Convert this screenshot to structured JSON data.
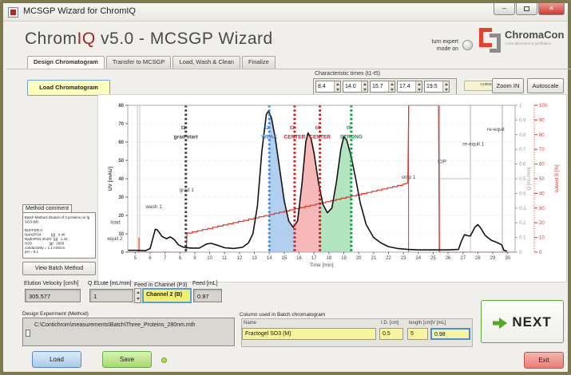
{
  "window": {
    "title": "MCSGP Wizard for ChromIQ"
  },
  "header": {
    "app_name_1": "Chrom",
    "app_name_2": "IQ",
    "app_name_3": " v5.0 - MCSGP Wizard",
    "expert_line1": "turn expert",
    "expert_line2": "mode on",
    "logo_name": "ChromaCon",
    "logo_tagline": "A new dimension in purification"
  },
  "tabs": [
    {
      "label": "Design Chromatogram",
      "active": true
    },
    {
      "label": "Transfer to MCSGP",
      "active": false
    },
    {
      "label": "Load, Wash & Clean",
      "active": false
    },
    {
      "label": "Finalize",
      "active": false
    }
  ],
  "toolbar": {
    "load_chromatogram": "Load Chromatogram",
    "characteristic_times_label": "Characteristic times (t1-t5)",
    "characteristic_times": [
      "8.4",
      "14.0",
      "15.7",
      "17.4",
      "19.5"
    ],
    "cursors_reset": "CURSORS RESET",
    "zoom_in": "Zoom IN",
    "autoscale": "Autoscale"
  },
  "method_comment": {
    "label": "Method comment",
    "lines": [
      "Batch Method: Elution of 3 proteins on fg",
      "SO3 (M)",
      "",
      "BUFFER A:",
      "NaH2PO4          [g]   0.40",
      "Na2HPO4 2H2O  [g]   1.44",
      "H2O                 [g]   2000",
      "conductivity = 1.1 mS/cm",
      "pH = 6.1"
    ],
    "view_batch_method": "View Batch Method"
  },
  "fields": {
    "elution_velocity": {
      "label": "Elution Velocity [cm/h]",
      "value": "305.577"
    },
    "q_elute": {
      "label": "Q ELute [mL/min]",
      "value": "1"
    },
    "feed_channel": {
      "label": "Feed in Channel (P3)",
      "value": "Channel 2 (B)"
    },
    "feed": {
      "label": "Feed [mL]",
      "value": "0.97"
    }
  },
  "design_experiment": {
    "label": "Design Experiment (Method)",
    "path": "C:\\Contichrom\\measurements\\Batch\\Three_Proteins_280nm.mth"
  },
  "column_table": {
    "label": "Column used in Batch chromatogram",
    "headers": [
      "Name",
      "I.D. [cm]",
      "length [cm]",
      "V [mL]"
    ],
    "row": [
      "Fractogel SO3 (M)",
      "0.5",
      "5",
      "0.98"
    ]
  },
  "actions": {
    "next": "NEXT",
    "load": "Load",
    "save": "Save",
    "exit": "Exit"
  },
  "chart_data": {
    "type": "line",
    "title": "",
    "xlabel": "Time [min]",
    "ylabel_left": "UV [mAU]",
    "ylabel_right_q": "Q [mL/min]",
    "ylabel_right_b": "solvent B [%]",
    "xlim": [
      5,
      30
    ],
    "ylim_uv": [
      0,
      80
    ],
    "ylim_q": [
      0,
      1
    ],
    "ylim_b": [
      0,
      100
    ],
    "x_tick_step": 1,
    "uv_tick_step": 10,
    "q_tick_step": 0.1,
    "b_tick_step": 10,
    "series": [
      {
        "name": "UV",
        "axis": "uv",
        "color": "#141414",
        "points": [
          [
            4.5,
            1
          ],
          [
            5.0,
            1
          ],
          [
            5.7,
            0.8
          ],
          [
            6.0,
            2
          ],
          [
            6.2,
            8
          ],
          [
            6.35,
            12.5
          ],
          [
            6.5,
            12
          ],
          [
            6.8,
            8.5
          ],
          [
            7.1,
            7.3
          ],
          [
            7.35,
            8.3
          ],
          [
            7.6,
            7
          ],
          [
            7.9,
            4
          ],
          [
            8.2,
            2.8
          ],
          [
            8.7,
            2.2
          ],
          [
            9.3,
            2.2
          ],
          [
            9.8,
            4.5
          ],
          [
            10.1,
            4.8
          ],
          [
            10.5,
            3.8
          ],
          [
            11.0,
            2.4
          ],
          [
            11.6,
            2.0
          ],
          [
            12.2,
            2.6
          ],
          [
            12.6,
            5
          ],
          [
            12.9,
            10
          ],
          [
            13.2,
            25
          ],
          [
            13.5,
            55
          ],
          [
            13.8,
            75
          ],
          [
            13.95,
            77
          ],
          [
            14.15,
            73
          ],
          [
            14.4,
            62
          ],
          [
            14.7,
            45
          ],
          [
            15.0,
            28
          ],
          [
            15.3,
            17
          ],
          [
            15.6,
            13.5
          ],
          [
            15.9,
            17
          ],
          [
            16.2,
            38
          ],
          [
            16.45,
            60
          ],
          [
            16.6,
            65
          ],
          [
            16.8,
            62
          ],
          [
            17.0,
            54
          ],
          [
            17.3,
            38
          ],
          [
            17.6,
            26
          ],
          [
            17.9,
            21.5
          ],
          [
            18.2,
            24
          ],
          [
            18.5,
            38
          ],
          [
            18.8,
            56
          ],
          [
            19.0,
            63
          ],
          [
            19.2,
            61
          ],
          [
            19.5,
            52
          ],
          [
            19.8,
            40
          ],
          [
            20.1,
            27
          ],
          [
            20.5,
            15
          ],
          [
            21.0,
            8
          ],
          [
            21.5,
            5
          ],
          [
            22.0,
            3
          ],
          [
            22.6,
            2
          ],
          [
            23.3,
            1.5
          ],
          [
            24.0,
            1.2
          ],
          [
            25.0,
            1.2
          ],
          [
            26.0,
            1.2
          ],
          [
            26.7,
            1.5
          ],
          [
            26.9,
            6
          ],
          [
            27.1,
            9.5
          ],
          [
            27.3,
            9
          ],
          [
            27.5,
            8.8
          ],
          [
            27.8,
            13.5
          ],
          [
            28.0,
            15
          ],
          [
            28.2,
            13
          ],
          [
            28.5,
            9
          ],
          [
            28.9,
            6.5
          ],
          [
            29.3,
            5.2
          ],
          [
            29.6,
            4
          ],
          [
            29.75,
            1
          ],
          [
            29.95,
            0.5
          ]
        ]
      },
      {
        "name": "solvent B",
        "axis": "b",
        "color": "#e03424",
        "points": [
          [
            4.5,
            0
          ],
          [
            8.42,
            0
          ],
          [
            8.48,
            13
          ],
          [
            23.3,
            47
          ],
          [
            23.36,
            100
          ],
          [
            25.36,
            100
          ],
          [
            25.42,
            0
          ],
          [
            30.5,
            0
          ]
        ]
      },
      {
        "name": "Q",
        "axis": "q",
        "color": "#b8b8b8",
        "points": [
          [
            4.5,
            1
          ],
          [
            25.4,
            1
          ],
          [
            25.41,
            0.5
          ],
          [
            27.5,
            0.5
          ],
          [
            27.51,
            1
          ],
          [
            29.63,
            1
          ],
          [
            29.64,
            0
          ],
          [
            30.5,
            0
          ]
        ]
      }
    ],
    "cursors": [
      {
        "name": "t1",
        "tag": "grad start",
        "t": 8.4,
        "color": "#3c3c3c"
      },
      {
        "name": "t2",
        "tag": "WEAK",
        "t": 14.0,
        "color": "#3d85d8"
      },
      {
        "name": "t3",
        "tag": "CENTER",
        "t": 15.7,
        "color": "#dd1111"
      },
      {
        "name": "t4",
        "tag": "CENTER",
        "t": 17.4,
        "color": "#dd1111"
      },
      {
        "name": "t5",
        "tag": "STRONG",
        "t": 19.5,
        "color": "#089b3c"
      }
    ],
    "regions": [
      {
        "from": 14.0,
        "to": 15.7,
        "color": "#9ec4ec"
      },
      {
        "from": 15.7,
        "to": 17.4,
        "color": "#f4a6a6"
      },
      {
        "from": 17.4,
        "to": 19.5,
        "color": "#9fdfb0"
      }
    ],
    "event_lines": [
      {
        "t": 5.15,
        "color": "gray"
      },
      {
        "t": 5.3,
        "color": "gray"
      },
      {
        "t": 5.25,
        "color": "red",
        "partial": 10
      },
      {
        "t": 23.35,
        "color": "red"
      },
      {
        "t": 25.4,
        "color": "red"
      },
      {
        "t": 25.45,
        "color": "gray"
      },
      {
        "t": 27.5,
        "color": "gray"
      },
      {
        "t": 29.65,
        "color": "gray"
      }
    ],
    "phase_labels": [
      {
        "text": "load",
        "t": 4.0,
        "uv": 15.5,
        "anchor": "end"
      },
      {
        "text": "equil 2",
        "t": 4.15,
        "uv": 6.5,
        "anchor": "end"
      },
      {
        "text": "wash 1",
        "t": 6.25,
        "uv": 24
      },
      {
        "text": "grad 1",
        "t": 8.45,
        "uv": 33
      },
      {
        "text": "strip 1",
        "t": 23.35,
        "uv": 40
      },
      {
        "text": "CIP",
        "t": 25.6,
        "uv": 48.5
      },
      {
        "text": "re-equil 1",
        "t": 27.7,
        "uv": 58
      },
      {
        "text": "re-equil",
        "t": 29.2,
        "uv": 66
      }
    ]
  }
}
